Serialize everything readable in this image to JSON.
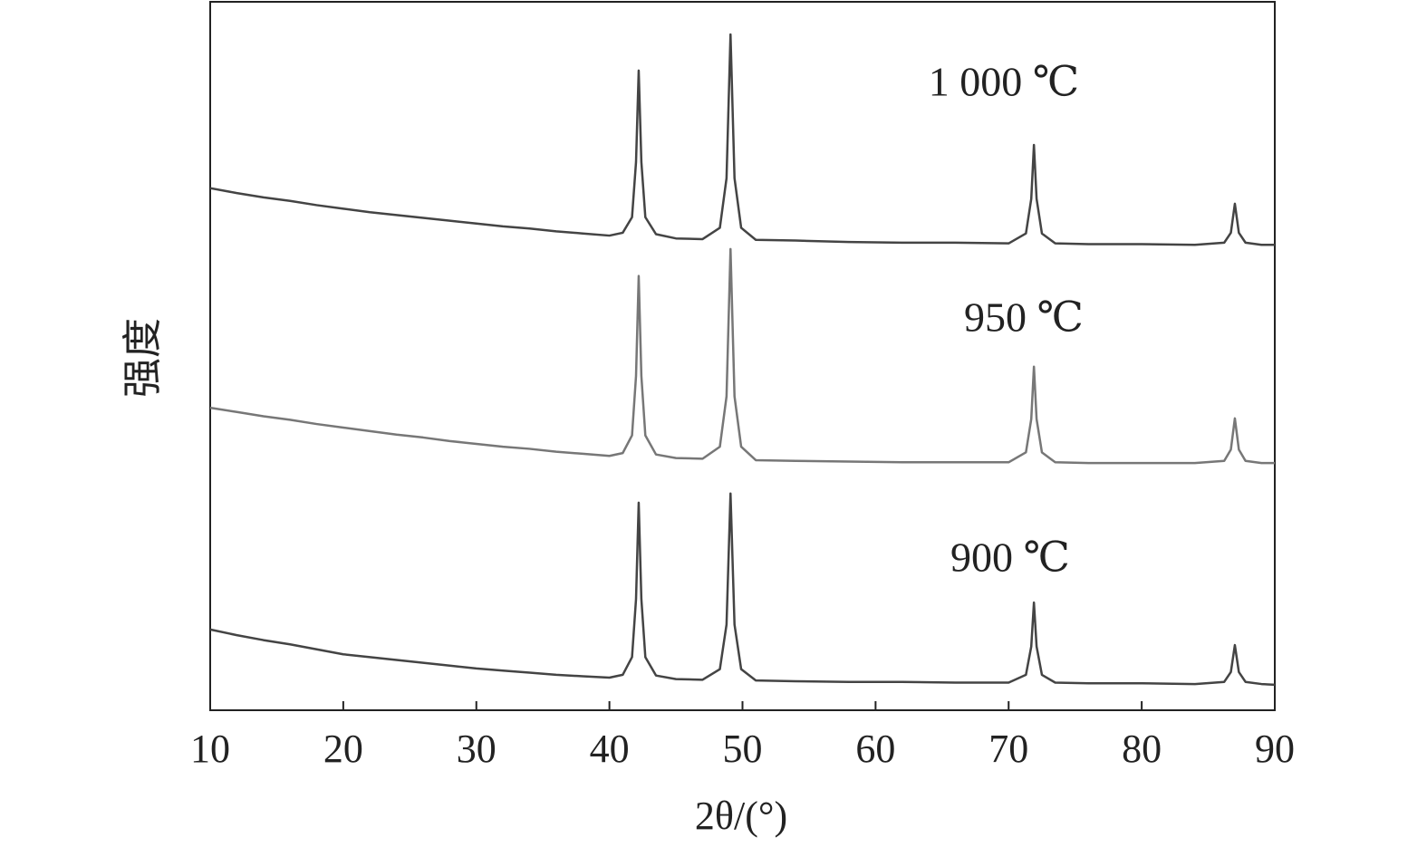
{
  "chart_data": {
    "type": "line",
    "x_label": "2θ/(°)",
    "y_label": "强度",
    "xlim": [
      10,
      90
    ],
    "xticks": [
      10,
      20,
      30,
      40,
      50,
      60,
      70,
      80,
      90
    ],
    "ylim": [
      0,
      100
    ],
    "x": [
      10,
      12,
      14,
      16,
      18,
      20,
      22,
      24,
      26,
      28,
      30,
      32,
      34,
      36,
      38,
      40,
      41,
      41.7,
      42.0,
      42.2,
      42.4,
      42.7,
      43.5,
      45,
      47,
      48.3,
      48.8,
      49.1,
      49.4,
      49.9,
      51,
      54,
      58,
      62,
      66,
      70,
      71.3,
      71.7,
      71.9,
      72.1,
      72.5,
      73.5,
      76,
      80,
      84,
      86.2,
      86.7,
      87.0,
      87.3,
      87.8,
      89,
      90
    ],
    "series": [
      {
        "name": "1 000 ℃",
        "color": "#444444",
        "values": [
          73.7,
          73.0,
          72.4,
          71.9,
          71.3,
          70.8,
          70.3,
          69.9,
          69.5,
          69.1,
          68.7,
          68.3,
          68.0,
          67.6,
          67.3,
          67.0,
          67.4,
          69.6,
          77.4,
          90.3,
          77.4,
          69.6,
          67.2,
          66.6,
          66.5,
          68.1,
          75.1,
          95.4,
          75.1,
          68.1,
          66.4,
          66.3,
          66.1,
          66.0,
          66.0,
          65.9,
          67.3,
          72.2,
          79.8,
          72.2,
          67.3,
          65.9,
          65.8,
          65.8,
          65.7,
          66.0,
          67.4,
          71.5,
          67.4,
          66.0,
          65.7,
          65.7
        ]
      },
      {
        "name": "950 ℃",
        "color": "#777777",
        "values": [
          42.7,
          42.1,
          41.5,
          41.0,
          40.4,
          39.9,
          39.4,
          38.9,
          38.5,
          38.0,
          37.6,
          37.2,
          36.9,
          36.5,
          36.2,
          35.9,
          36.3,
          38.8,
          47.2,
          61.3,
          47.2,
          38.8,
          36.1,
          35.6,
          35.5,
          37.2,
          44.3,
          65.1,
          44.3,
          37.2,
          35.3,
          35.2,
          35.1,
          35.0,
          35.0,
          35.0,
          36.4,
          41.1,
          48.5,
          41.1,
          36.4,
          35.0,
          34.9,
          34.9,
          34.9,
          35.2,
          36.8,
          41.2,
          36.8,
          35.2,
          34.9,
          34.9
        ]
      },
      {
        "name": "900 ℃",
        "color": "#444444",
        "values": [
          11.4,
          10.6,
          9.9,
          9.3,
          8.6,
          7.9,
          7.5,
          7.1,
          6.7,
          6.3,
          5.9,
          5.6,
          5.3,
          5.0,
          4.8,
          4.6,
          5.0,
          7.5,
          15.7,
          29.3,
          15.7,
          7.5,
          4.9,
          4.4,
          4.3,
          5.8,
          12.1,
          30.6,
          12.1,
          5.8,
          4.2,
          4.1,
          4.0,
          4.0,
          3.9,
          3.9,
          5.0,
          9.0,
          15.2,
          9.0,
          5.0,
          3.9,
          3.8,
          3.8,
          3.7,
          4.0,
          5.4,
          9.2,
          5.4,
          4.0,
          3.7,
          3.6
        ]
      }
    ]
  }
}
